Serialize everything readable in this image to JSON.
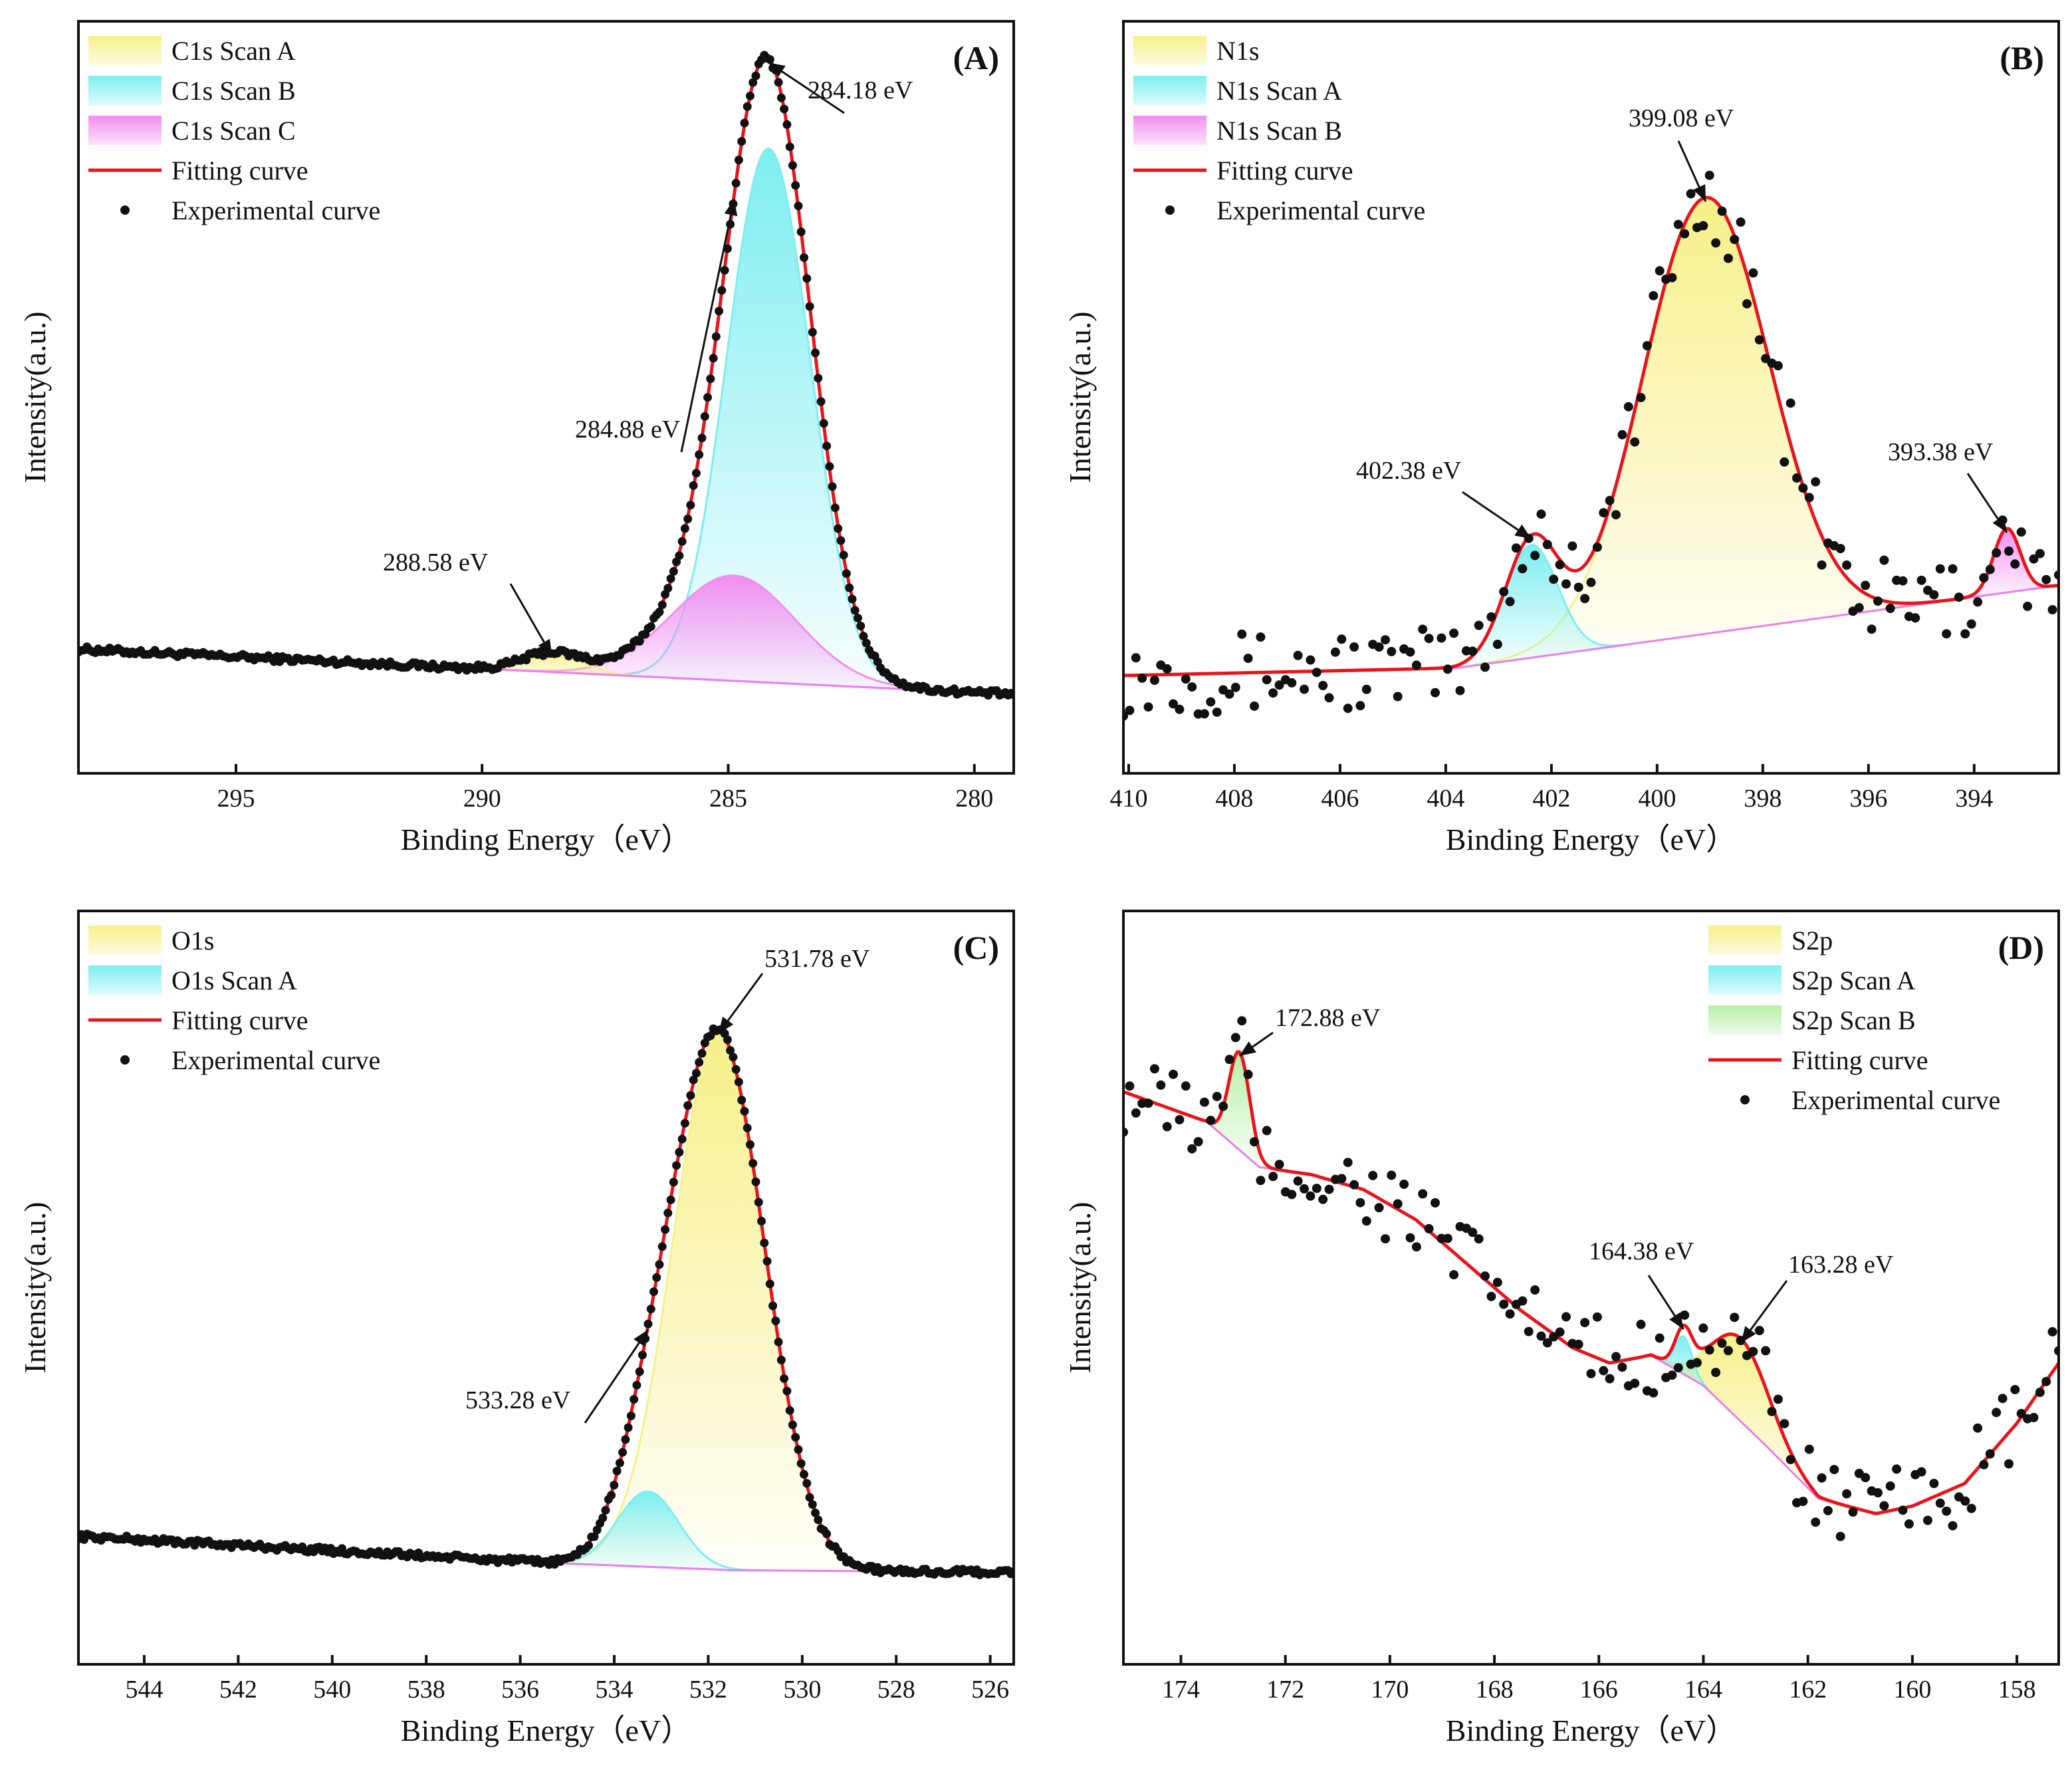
{
  "chart_data": [
    {
      "panel": "(A)",
      "type": "area",
      "xlabel": "Binding Energy（eV）",
      "ylabel": "Intensity(a.u.)",
      "xlim": [
        298.2,
        279.2
      ],
      "ylim": [
        0,
        100
      ],
      "xticks": [
        295,
        290,
        285,
        280
      ],
      "legend_position": "top-left",
      "fill_colors": [
        "#f7f08a",
        "#7eeef0",
        "#f28ef0"
      ],
      "fit_color": "#e8141b",
      "point_color": "#111111",
      "legend": [
        {
          "label": "C1s Scan A",
          "kind": "fill",
          "color": "#f7f08a"
        },
        {
          "label": "C1s Scan B",
          "kind": "fill",
          "color": "#7eeef0"
        },
        {
          "label": "C1s Scan C",
          "kind": "fill",
          "color": "#f28ef0"
        },
        {
          "label": "Fitting curve",
          "kind": "line",
          "color": "#e8141b"
        },
        {
          "label": "Experimental curve",
          "kind": "point",
          "color": "#111111"
        }
      ],
      "baseline": {
        "x": [
          298.2,
          279.2
        ],
        "y": [
          16.5,
          10.5
        ]
      },
      "peaks": [
        {
          "name": "C1s Scan A",
          "center": 288.58,
          "height": 2.5,
          "width": 0.6,
          "color": "#f7f08a"
        },
        {
          "name": "C1s Scan B",
          "center": 284.18,
          "height": 71,
          "width": 0.85,
          "color": "#7eeef0"
        },
        {
          "name": "C1s Scan C",
          "center": 284.88,
          "height": 14,
          "width": 1.25,
          "color": "#f28ef0"
        }
      ],
      "annotations": [
        {
          "text": "284.18 eV",
          "x": 284.18
        },
        {
          "text": "284.88 eV",
          "x": 284.88
        },
        {
          "text": "288.58 eV",
          "x": 288.58
        }
      ]
    },
    {
      "panel": "(B)",
      "type": "area",
      "xlabel": "Binding Energy（eV）",
      "ylabel": "Intensity(a.u.)",
      "xlim": [
        410.1,
        392.4
      ],
      "ylim": [
        0,
        100
      ],
      "xticks": [
        410,
        408,
        406,
        404,
        402,
        400,
        398,
        396,
        394
      ],
      "legend_position": "top-left",
      "fill_colors": [
        "#f7f08a",
        "#7eeef0",
        "#f28ef0"
      ],
      "fit_color": "#e8141b",
      "point_color": "#111111",
      "legend": [
        {
          "label": "N1s",
          "kind": "fill",
          "color": "#f7f08a"
        },
        {
          "label": "N1s Scan A",
          "kind": "fill",
          "color": "#7eeef0"
        },
        {
          "label": "N1s Scan B",
          "kind": "fill",
          "color": "#f28ef0"
        },
        {
          "label": "Fitting curve",
          "kind": "line",
          "color": "#e8141b"
        },
        {
          "label": "Experimental curve",
          "kind": "point",
          "color": "#111111"
        }
      ],
      "baseline": {
        "x": [
          410.1,
          403.8,
          392.4
        ],
        "y": [
          13,
          14,
          25
        ]
      },
      "peaks": [
        {
          "name": "N1s",
          "center": 399.08,
          "height": 58,
          "width": 1.2,
          "color": "#f7f08a"
        },
        {
          "name": "N1s Scan A",
          "center": 402.38,
          "height": 15,
          "width": 0.5,
          "color": "#7eeef0"
        },
        {
          "name": "N1s Scan B",
          "center": 393.38,
          "height": 8.5,
          "width": 0.25,
          "color": "#f28ef0"
        }
      ],
      "annotations": [
        {
          "text": "399.08 eV",
          "x": 399.08
        },
        {
          "text": "402.38 eV",
          "x": 402.38
        },
        {
          "text": "393.38 eV",
          "x": 393.38
        }
      ]
    },
    {
      "panel": "(C)",
      "type": "area",
      "xlabel": "Binding Energy（eV）",
      "ylabel": "Intensity(a.u.)",
      "xlim": [
        545.4,
        525.5
      ],
      "ylim": [
        0,
        100
      ],
      "xticks": [
        544,
        542,
        540,
        538,
        536,
        534,
        532,
        530,
        528,
        526
      ],
      "legend_position": "top-left",
      "fill_colors": [
        "#f7f08a",
        "#7eeef0"
      ],
      "fit_color": "#e8141b",
      "point_color": "#111111",
      "legend": [
        {
          "label": "O1s",
          "kind": "fill",
          "color": "#f7f08a"
        },
        {
          "label": "O1s Scan A",
          "kind": "fill",
          "color": "#7eeef0"
        },
        {
          "label": "Fitting curve",
          "kind": "line",
          "color": "#e8141b"
        },
        {
          "label": "Experimental curve",
          "kind": "point",
          "color": "#111111"
        }
      ],
      "baseline": {
        "x": [
          545.4,
          535.5,
          531.5,
          525.5
        ],
        "y": [
          17,
          13.5,
          12.5,
          12.2
        ]
      },
      "peaks": [
        {
          "name": "O1s",
          "center": 531.78,
          "height": 71,
          "width": 0.98,
          "color": "#f7f08a"
        },
        {
          "name": "O1s Scan A",
          "center": 533.28,
          "height": 10,
          "width": 0.65,
          "color": "#7eeef0"
        }
      ],
      "annotations": [
        {
          "text": "531.78 eV",
          "x": 531.78
        },
        {
          "text": "533.28 eV",
          "x": 533.28
        }
      ]
    },
    {
      "panel": "(D)",
      "type": "area",
      "xlabel": "Binding Energy（eV）",
      "ylabel": "Intensity(a.u.)",
      "xlim": [
        175.1,
        157.2
      ],
      "ylim": [
        0,
        100
      ],
      "xticks": [
        174,
        172,
        170,
        168,
        166,
        164,
        162,
        160,
        158
      ],
      "legend_position": "top-right",
      "fill_colors": [
        "#f7f08a",
        "#7eeef0",
        "#b6f0a6"
      ],
      "fit_color": "#e8141b",
      "point_color": "#111111",
      "legend": [
        {
          "label": "S2p",
          "kind": "fill",
          "color": "#f7f08a"
        },
        {
          "label": "S2p Scan A",
          "kind": "fill",
          "color": "#7eeef0"
        },
        {
          "label": "S2p Scan B",
          "kind": "fill",
          "color": "#b6f0a6"
        },
        {
          "label": "Fitting curve",
          "kind": "line",
          "color": "#e8141b"
        },
        {
          "label": "Experimental curve",
          "kind": "point",
          "color": "#111111"
        }
      ],
      "baseline": {
        "x": [
          175.1,
          173.5,
          172.5,
          171.5,
          170.5,
          169.5,
          168.5,
          167.5,
          166.5,
          165.8,
          165,
          164,
          162.8,
          161.8,
          160.7,
          160,
          159,
          158,
          157.2
        ],
        "y": [
          76,
          72,
          66,
          65,
          63,
          59,
          53,
          47,
          42,
          40,
          41,
          37,
          29,
          22,
          20,
          21,
          24,
          32,
          40
        ]
      },
      "peaks": [
        {
          "name": "S2p",
          "center": 163.28,
          "height": 11,
          "width": 0.55,
          "color": "#f7f08a"
        },
        {
          "name": "S2p Scan A",
          "center": 164.38,
          "height": 5,
          "width": 0.16,
          "color": "#7eeef0"
        },
        {
          "name": "S2p Scan B",
          "center": 172.88,
          "height": 13,
          "width": 0.2,
          "color": "#b6f0a6"
        }
      ],
      "annotations": [
        {
          "text": "172.88 eV",
          "x": 172.88
        },
        {
          "text": "164.38 eV",
          "x": 164.38
        },
        {
          "text": "163.28 eV",
          "x": 163.28
        }
      ]
    }
  ]
}
